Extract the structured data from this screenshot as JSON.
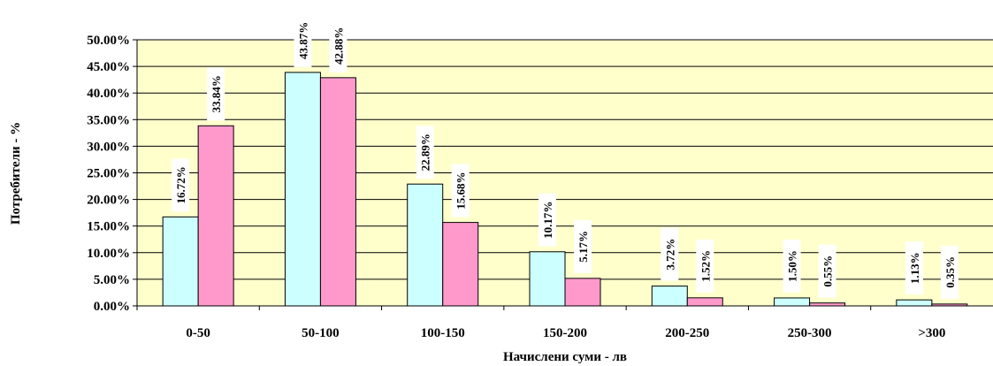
{
  "chart_data": {
    "type": "bar",
    "categories": [
      "0-50",
      "50-100",
      "100-150",
      "150-200",
      "200-250",
      "250-300",
      ">300"
    ],
    "series": [
      {
        "values": [
          16.72,
          43.87,
          22.89,
          10.17,
          3.72,
          1.5,
          1.13
        ],
        "color": "#ccffff"
      },
      {
        "values": [
          33.84,
          42.88,
          15.68,
          5.17,
          1.52,
          0.55,
          0.35
        ],
        "color": "#ff99cc"
      }
    ],
    "data_labels": [
      [
        "16.72%",
        "43.87%",
        "22.89%",
        "10.17%",
        "3.72%",
        "1.50%",
        "1.13%"
      ],
      [
        "33.84%",
        "42.88%",
        "15.68%",
        "5.17%",
        "1.52%",
        "0.55%",
        "0.35%"
      ]
    ],
    "y_ticks": [
      "0.00%",
      "5.00%",
      "10.00%",
      "15.00%",
      "20.00%",
      "25.00%",
      "30.00%",
      "35.00%",
      "40.00%",
      "45.00%",
      "50.00%"
    ],
    "ylim": [
      0,
      50
    ],
    "xlabel": "Начислени суми - лв",
    "ylabel": "Потребители - %",
    "grid": true,
    "legend": "none",
    "plot_background": "#ffffcc"
  }
}
